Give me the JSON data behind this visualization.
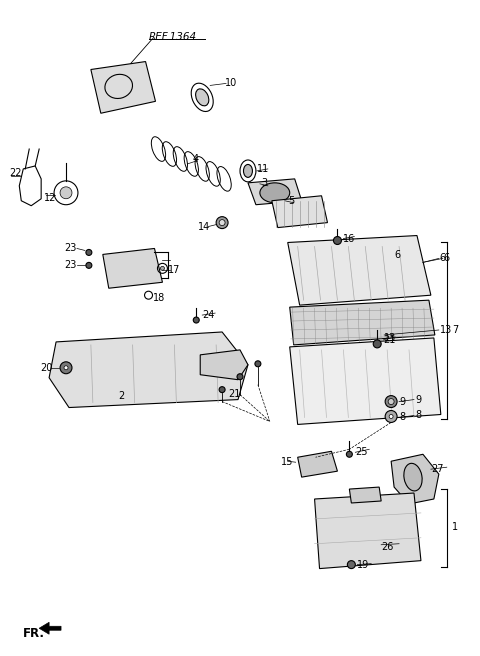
{
  "background_color": "#ffffff",
  "line_color": "#000000",
  "ref_label": "REF.1364",
  "fr_label": "FR.",
  "fig_width": 4.8,
  "fig_height": 6.56,
  "dpi": 100
}
